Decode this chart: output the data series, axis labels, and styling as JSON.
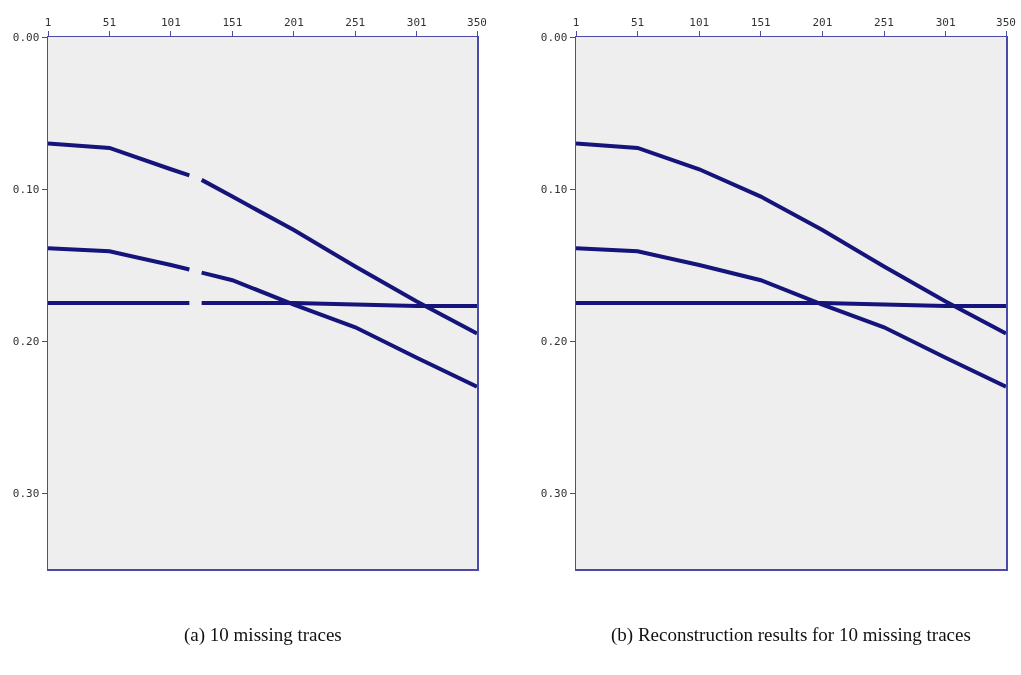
{
  "chart_data": [
    {
      "type": "line",
      "x": [
        1,
        51,
        101,
        116,
        121,
        126,
        151,
        201,
        251,
        301,
        350
      ],
      "series": [
        {
          "color": "#14147a",
          "values": [
            0.07,
            0.073,
            0.087,
            0.091,
            null,
            0.094,
            0.105,
            0.127,
            0.151,
            0.174,
            0.195
          ]
        },
        {
          "color": "#14147a",
          "values": [
            0.139,
            0.141,
            0.15,
            0.153,
            null,
            0.155,
            0.16,
            0.176,
            0.191,
            0.211,
            0.23
          ]
        },
        {
          "color": "#14147a",
          "values": [
            0.175,
            0.175,
            0.175,
            0.175,
            null,
            0.175,
            0.175,
            0.175,
            0.176,
            0.177,
            0.177
          ]
        }
      ],
      "xlim": [
        1,
        350
      ],
      "xticks": [
        1,
        51,
        101,
        151,
        201,
        251,
        301,
        350
      ],
      "ylim": [
        0.35,
        0
      ],
      "yticks": [
        {
          "value": 0,
          "label": "0.00"
        },
        {
          "value": 0.1,
          "label": "0.10"
        },
        {
          "value": 0.2,
          "label": "0.20"
        },
        {
          "value": 0.3,
          "label": "0.30"
        }
      ],
      "grid": false,
      "line_style": "solid",
      "marker": "none",
      "annotations": [
        "(a) 10 missing traces"
      ]
    },
    {
      "type": "line",
      "x": [
        1,
        51,
        101,
        151,
        201,
        251,
        301,
        350
      ],
      "series": [
        {
          "color": "#14147a",
          "values": [
            0.07,
            0.073,
            0.087,
            0.105,
            0.127,
            0.151,
            0.174,
            0.195
          ]
        },
        {
          "color": "#14147a",
          "values": [
            0.139,
            0.141,
            0.15,
            0.16,
            0.176,
            0.191,
            0.211,
            0.23
          ]
        },
        {
          "color": "#14147a",
          "values": [
            0.175,
            0.175,
            0.175,
            0.175,
            0.175,
            0.176,
            0.177,
            0.177
          ]
        }
      ],
      "xlim": [
        1,
        350
      ],
      "xticks": [
        1,
        51,
        101,
        151,
        201,
        251,
        301,
        350
      ],
      "ylim": [
        0.35,
        0
      ],
      "yticks": [
        {
          "value": 0,
          "label": "0.00"
        },
        {
          "value": 0.1,
          "label": "0.10"
        },
        {
          "value": 0.2,
          "label": "0.20"
        },
        {
          "value": 0.3,
          "label": "0.30"
        }
      ],
      "grid": false,
      "line_style": "solid",
      "marker": "none",
      "annotations": [
        "(b) Reconstruction results for 10 missing traces"
      ]
    }
  ]
}
